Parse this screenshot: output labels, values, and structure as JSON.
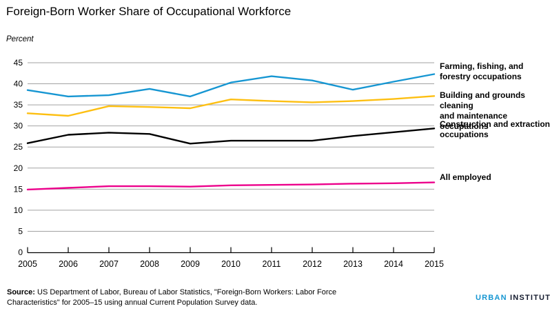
{
  "chart_data": {
    "type": "line",
    "title": "Foreign-Born Worker Share of Occupational Workforce",
    "y_axis_title": "Percent",
    "xlabel": "",
    "ylabel": "Percent",
    "ylim": [
      0,
      45
    ],
    "y_ticks": [
      0,
      5,
      10,
      15,
      20,
      25,
      30,
      35,
      40,
      45
    ],
    "x": [
      2005,
      2006,
      2007,
      2008,
      2009,
      2010,
      2011,
      2012,
      2013,
      2014,
      2015
    ],
    "grid": true,
    "grid_color": "#a2a2a2",
    "axis_color": "#000000",
    "legend_position": "right",
    "series": [
      {
        "name": "Farming, fishing, and forestry occupations",
        "label": "Farming, fishing, and\nforestry occupations",
        "color": "#1696d2",
        "values": [
          38.5,
          37.0,
          37.3,
          38.8,
          37.0,
          40.3,
          41.8,
          40.8,
          38.6,
          40.5,
          42.3
        ]
      },
      {
        "name": "Building and grounds cleaning and maintenance occupations",
        "label": "Building and grounds cleaning\nand maintenance occupations",
        "color": "#fdbf11",
        "values": [
          33.0,
          32.4,
          34.7,
          34.5,
          34.2,
          36.3,
          35.9,
          35.6,
          35.9,
          36.4,
          37.1
        ]
      },
      {
        "name": "Construction and extraction occupations",
        "label": "Construction and extraction\noccupations",
        "color": "#000000",
        "values": [
          25.9,
          27.9,
          28.4,
          28.1,
          25.8,
          26.5,
          26.5,
          26.5,
          27.6,
          28.5,
          29.4
        ]
      },
      {
        "name": "All employed",
        "label": "All employed",
        "color": "#ec008b",
        "values": [
          14.9,
          15.3,
          15.7,
          15.7,
          15.6,
          15.9,
          16.0,
          16.1,
          16.3,
          16.4,
          16.6
        ]
      }
    ]
  },
  "source": {
    "prefix": "Source:",
    "line1_rest": " US Department of Labor, Bureau of Labor Statistics, \"Foreign-Born Workers: Labor Force",
    "line2": "Characteristics\" for 2005–15 using annual Current Population Survey data."
  },
  "logo": {
    "word1": "URBAN",
    "word2": "INSTITUTE"
  }
}
